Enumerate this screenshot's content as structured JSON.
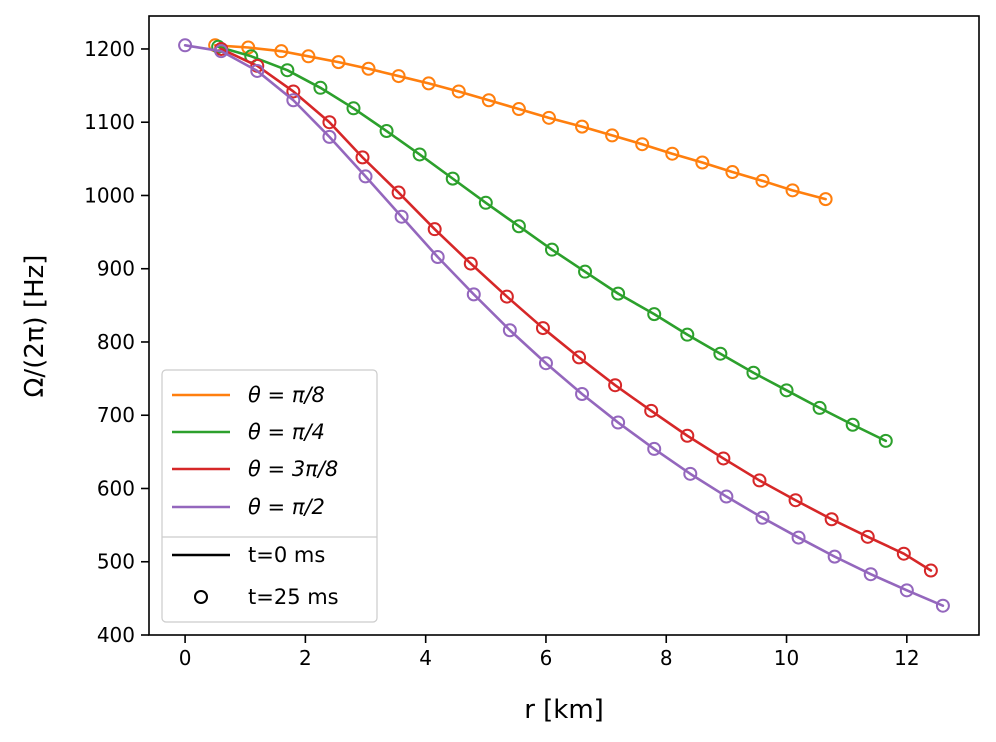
{
  "chart_data": {
    "type": "line",
    "xlabel": "r [km]",
    "ylabel": "Ω/(2π) [Hz]",
    "xlim": [
      -0.6,
      13.2
    ],
    "ylim": [
      400,
      1245
    ],
    "xticks": [
      0,
      2,
      4,
      6,
      8,
      10,
      12
    ],
    "yticks": [
      400,
      500,
      600,
      700,
      800,
      900,
      1000,
      1100,
      1200
    ],
    "legend_position": "lower-left",
    "series": [
      {
        "name": "θ = π/8",
        "math_var": "θ",
        "math_eq": " = ",
        "math_rest": "π/8",
        "color": "#ff7f0e",
        "x": [
          0.5,
          1.05,
          1.6,
          2.05,
          2.55,
          3.05,
          3.55,
          4.05,
          4.55,
          5.05,
          5.55,
          6.05,
          6.6,
          7.1,
          7.6,
          8.1,
          8.6,
          9.1,
          9.6,
          10.1,
          10.65
        ],
        "y": [
          1205,
          1202,
          1197,
          1190,
          1182,
          1173,
          1163,
          1153,
          1142,
          1130,
          1118,
          1106,
          1094,
          1082,
          1070,
          1057,
          1045,
          1032,
          1020,
          1007,
          995
        ]
      },
      {
        "name": "θ = π/4",
        "math_var": "θ",
        "math_eq": " = ",
        "math_rest": "π/4",
        "color": "#2ca02c",
        "x": [
          0.55,
          1.1,
          1.7,
          2.25,
          2.8,
          3.35,
          3.9,
          4.45,
          5.0,
          5.55,
          6.1,
          6.65,
          7.2,
          7.8,
          8.35,
          8.9,
          9.45,
          10.0,
          10.55,
          11.1,
          11.65
        ],
        "y": [
          1203,
          1190,
          1171,
          1147,
          1119,
          1088,
          1056,
          1023,
          990,
          958,
          926,
          896,
          866,
          838,
          810,
          784,
          758,
          734,
          710,
          687,
          665
        ]
      },
      {
        "name": "θ = 3π/8",
        "math_var": "θ",
        "math_eq": " = ",
        "math_rest": "3π/8",
        "color": "#d62728",
        "x": [
          0.6,
          1.2,
          1.8,
          2.4,
          2.95,
          3.55,
          4.15,
          4.75,
          5.35,
          5.95,
          6.55,
          7.15,
          7.75,
          8.35,
          8.95,
          9.55,
          10.15,
          10.75,
          11.35,
          11.95,
          12.4
        ],
        "y": [
          1200,
          1177,
          1142,
          1100,
          1052,
          1004,
          954,
          907,
          862,
          819,
          779,
          741,
          706,
          672,
          641,
          611,
          584,
          558,
          534,
          511,
          488
        ]
      },
      {
        "name": "θ = π/2",
        "math_var": "θ",
        "math_eq": " = ",
        "math_rest": "π/2",
        "color": "#9467bd",
        "x": [
          0.0,
          0.6,
          1.2,
          1.8,
          2.4,
          3.0,
          3.6,
          4.2,
          4.8,
          5.4,
          6.0,
          6.6,
          7.2,
          7.8,
          8.4,
          9.0,
          9.6,
          10.2,
          10.8,
          11.4,
          12.0,
          12.6
        ],
        "y": [
          1205,
          1197,
          1170,
          1130,
          1080,
          1026,
          971,
          916,
          865,
          816,
          771,
          729,
          690,
          654,
          620,
          589,
          560,
          533,
          507,
          483,
          461,
          440
        ]
      }
    ],
    "style_entries": [
      {
        "label": "t=0 ms",
        "marker": "line"
      },
      {
        "label": "t=25 ms",
        "marker": "circle"
      }
    ]
  }
}
